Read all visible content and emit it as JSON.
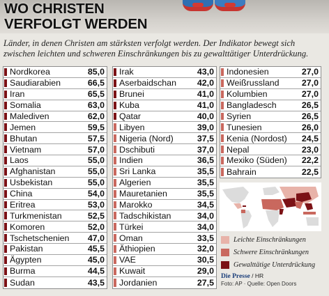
{
  "header": {
    "title_line1": "WO CHRISTEN",
    "title_line2": "VERFOLGT WERDEN",
    "subtitle": "Länder, in denen Christen am stärksten verfolgt werden. Der Indikator bewegt sich zwischen leichten und schweren Einschränkungen bis zu gewalttätiger Unterdrückung."
  },
  "colors": {
    "leicht": "#e8b3a9",
    "schwer": "#c9685e",
    "gewalt": "#7c1216",
    "frame": "#8d8d8d"
  },
  "legend": {
    "leicht": "Leichte Einschränkungen",
    "schwer": "Schwere Einschränkungen",
    "gewalt": "Gewalttätige Unterdrückung"
  },
  "credits": {
    "brand": "Die Presse",
    "suffix": "/ HR",
    "source": "Foto: AP · Quelle: Open Doors"
  },
  "chart_data": {
    "type": "table",
    "title": "WO CHRISTEN VERFOLGT WERDEN",
    "columns": [
      [
        {
          "country": "Nordkorea",
          "value": "85,0",
          "level": "gewalt"
        },
        {
          "country": "Saudiarabien",
          "value": "66,5",
          "level": "gewalt"
        },
        {
          "country": "Iran",
          "value": "65,5",
          "level": "gewalt"
        },
        {
          "country": "Somalia",
          "value": "63,0",
          "level": "gewalt"
        },
        {
          "country": "Malediven",
          "value": "62,0",
          "level": "gewalt"
        },
        {
          "country": "Jemen",
          "value": "59,5",
          "level": "gewalt"
        },
        {
          "country": "Bhutan",
          "value": "57,5",
          "level": "gewalt"
        },
        {
          "country": "Vietnam",
          "value": "57,0",
          "level": "gewalt"
        },
        {
          "country": "Laos",
          "value": "55,0",
          "level": "gewalt"
        },
        {
          "country": "Afghanistan",
          "value": "55,0",
          "level": "gewalt"
        },
        {
          "country": "Usbekistan",
          "value": "55,0",
          "level": "gewalt"
        },
        {
          "country": "China",
          "value": "54,0",
          "level": "gewalt"
        },
        {
          "country": "Eritrea",
          "value": "53,0",
          "level": "gewalt"
        },
        {
          "country": "Turkmenistan",
          "value": "52,5",
          "level": "gewalt"
        },
        {
          "country": "Komoren",
          "value": "52,0",
          "level": "gewalt"
        },
        {
          "country": "Tschetschenien",
          "value": "47,0",
          "level": "gewalt"
        },
        {
          "country": "Pakistan",
          "value": "45,5",
          "level": "gewalt"
        },
        {
          "country": "Ägypten",
          "value": "45,0",
          "level": "gewalt"
        },
        {
          "country": "Burma",
          "value": "44,5",
          "level": "gewalt"
        },
        {
          "country": "Sudan",
          "value": "43,5",
          "level": "gewalt"
        }
      ],
      [
        {
          "country": "Irak",
          "value": "43,0",
          "level": "gewalt"
        },
        {
          "country": "Aserbaidschan",
          "value": "42,0",
          "level": "gewalt"
        },
        {
          "country": "Brunei",
          "value": "41,0",
          "level": "gewalt"
        },
        {
          "country": "Kuba",
          "value": "41,0",
          "level": "gewalt"
        },
        {
          "country": "Qatar",
          "value": "40,0",
          "level": "gewalt"
        },
        {
          "country": "Libyen",
          "value": "39,0",
          "level": "schwer"
        },
        {
          "country": "Nigeria (Nord)",
          "value": "37,5",
          "level": "schwer"
        },
        {
          "country": "Dschibuti",
          "value": "37,0",
          "level": "schwer"
        },
        {
          "country": "Indien",
          "value": "36,5",
          "level": "schwer"
        },
        {
          "country": "Sri Lanka",
          "value": "35,5",
          "level": "schwer"
        },
        {
          "country": "Algerien",
          "value": "35,5",
          "level": "schwer"
        },
        {
          "country": "Mauretanien",
          "value": "35,5",
          "level": "schwer"
        },
        {
          "country": "Marokko",
          "value": "34,5",
          "level": "schwer"
        },
        {
          "country": "Tadschikistan",
          "value": "34,0",
          "level": "schwer"
        },
        {
          "country": "Türkei",
          "value": "34,0",
          "level": "schwer"
        },
        {
          "country": "Oman",
          "value": "33,5",
          "level": "schwer"
        },
        {
          "country": "Äthiopien",
          "value": "32,0",
          "level": "schwer"
        },
        {
          "country": "VAE",
          "value": "30,5",
          "level": "schwer"
        },
        {
          "country": "Kuwait",
          "value": "29,0",
          "level": "schwer"
        },
        {
          "country": "Jordanien",
          "value": "27,5",
          "level": "schwer"
        }
      ],
      [
        {
          "country": "Indonesien",
          "value": "27,0",
          "level": "schwer"
        },
        {
          "country": "Weißrussland",
          "value": "27,0",
          "level": "schwer"
        },
        {
          "country": "Kolumbien",
          "value": "27,0",
          "level": "schwer"
        },
        {
          "country": "Bangladesch",
          "value": "26,5",
          "level": "schwer"
        },
        {
          "country": "Syrien",
          "value": "26,5",
          "level": "schwer"
        },
        {
          "country": "Tunesien",
          "value": "26,0",
          "level": "schwer"
        },
        {
          "country": "Kenia (Nordost)",
          "value": "24,5",
          "level": "schwer"
        },
        {
          "country": "Nepal",
          "value": "23,0",
          "level": "schwer"
        },
        {
          "country": "Mexiko (Süden)",
          "value": "22,2",
          "level": "schwer"
        },
        {
          "country": "Bahrain",
          "value": "22,5",
          "level": "schwer"
        }
      ]
    ]
  }
}
